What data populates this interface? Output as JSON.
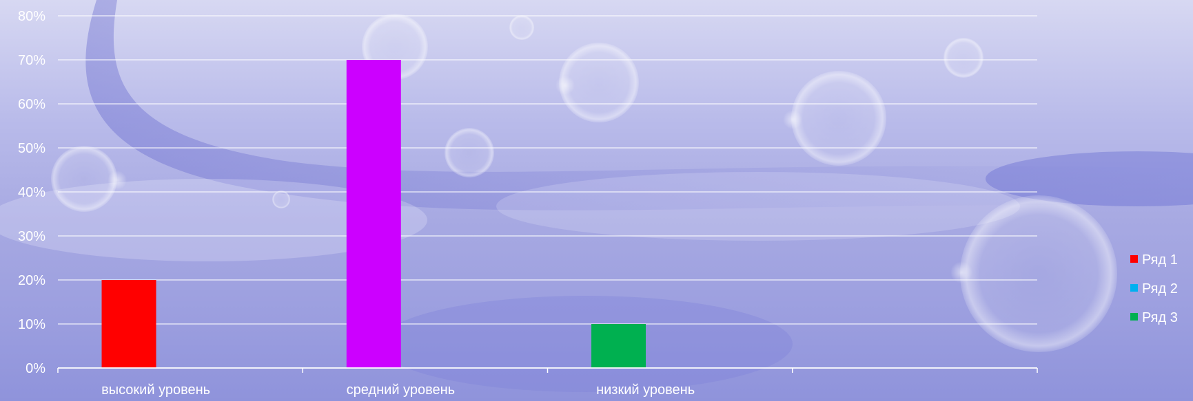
{
  "chart_data": {
    "type": "bar",
    "categories": [
      "высокий уровень",
      "средний уровень",
      "низкий уровень",
      ""
    ],
    "series": [
      {
        "name": "Ряд 1",
        "color": "#ff0000",
        "values": [
          20,
          null,
          null,
          null
        ]
      },
      {
        "name": "Ряд 2",
        "color": "#00b0f0",
        "values": [
          null,
          null,
          null,
          null
        ]
      },
      {
        "name": "Ряд 3",
        "color": "#00b050",
        "values": [
          null,
          null,
          10,
          null
        ]
      }
    ],
    "bars": [
      {
        "category": "высокий уровень",
        "value": 20,
        "color": "#ff0000"
      },
      {
        "category": "средний уровень",
        "value": 70,
        "color": "#cc00ff"
      },
      {
        "category": "низкий уровень",
        "value": 10,
        "color": "#00b050"
      }
    ],
    "y_ticks": [
      "0%",
      "10%",
      "20%",
      "30%",
      "40%",
      "50%",
      "60%",
      "70%",
      "80%"
    ],
    "ylim": [
      0,
      80
    ],
    "grid": true,
    "legend_position": "right",
    "colors": {
      "gridline": "#ffffff",
      "text": "#ffffff"
    }
  }
}
